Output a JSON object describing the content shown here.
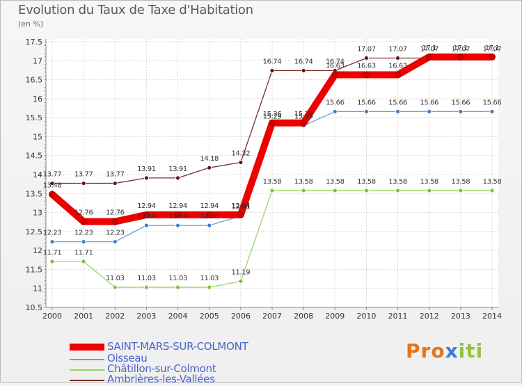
{
  "title": "Evolution du Taux de Taxe d'Habitation",
  "unit": "(en %)",
  "logo": "Proxiti",
  "chart_data": {
    "type": "line",
    "x": [
      "2000",
      "2001",
      "2002",
      "2003",
      "2004",
      "2005",
      "2006",
      "2007",
      "2008",
      "2009",
      "2010",
      "2011",
      "2012",
      "2013",
      "2014"
    ],
    "ylim": [
      10.5,
      17.5
    ],
    "yticks": [
      "10.5",
      "11",
      "11.5",
      "12",
      "12.5",
      "13",
      "13.5",
      "14",
      "14.5",
      "15",
      "15.5",
      "16",
      "16.5",
      "17",
      "17.5"
    ],
    "grid": true,
    "legend_position": "bottom",
    "series": [
      {
        "name": "Ambrières-les-Vallées",
        "color": "#7a2c2c",
        "point_color": "#5a1a1a",
        "values": [
          13.77,
          13.77,
          13.77,
          13.91,
          13.91,
          14.18,
          14.32,
          16.74,
          16.74,
          16.74,
          17.07,
          17.07,
          17.07,
          17.07,
          17.07
        ],
        "labels": [
          "13.77",
          "13.77",
          "13.77",
          "13.91",
          "13.91",
          "14.18",
          "14.32",
          "16.74",
          "16.74",
          "16.74",
          "17.07",
          "17.07",
          "17.07",
          "17.07",
          "17.07"
        ]
      },
      {
        "name": "Châtillon-sur-Colmont",
        "color": "#9ad65a",
        "point_color": "#7cc23a",
        "values": [
          11.71,
          11.71,
          11.03,
          11.03,
          11.03,
          11.03,
          11.19,
          13.58,
          13.58,
          13.58,
          13.58,
          13.58,
          13.58,
          13.58,
          13.58
        ],
        "labels": [
          "11.71",
          "11.71",
          "11.03",
          "11.03",
          "11.03",
          "11.03",
          "11.19",
          "13.58",
          "13.58",
          "13.58",
          "13.58",
          "13.58",
          "13.58",
          "13.58",
          "13.58"
        ]
      },
      {
        "name": "Oisseau",
        "color": "#6a9fd4",
        "point_color": "#3d7fc4",
        "values": [
          12.23,
          12.23,
          12.23,
          12.66,
          12.66,
          12.66,
          12.91,
          15.29,
          15.29,
          15.66,
          15.66,
          15.66,
          15.66,
          15.66,
          15.66
        ],
        "labels": [
          "12.23",
          "12.23",
          "12.23",
          "12.66",
          "12.66",
          "12.66",
          "12.91",
          "15.29",
          "15.29",
          "15.66",
          "15.66",
          "15.66",
          "15.66",
          "15.66",
          "15.66"
        ]
      },
      {
        "name": "SAINT-MARS-SUR-COLMONT",
        "color": "#ee0000",
        "point_color": "#cc0000",
        "thick": true,
        "values": [
          13.48,
          12.76,
          12.76,
          12.94,
          12.94,
          12.94,
          12.94,
          15.36,
          15.36,
          16.63,
          16.63,
          16.63,
          17.1,
          17.1,
          17.1
        ],
        "labels": [
          "13.48",
          "12.76",
          "12.76",
          "12.94",
          "12.94",
          "12.94",
          "12.94",
          "15.36",
          "15.36",
          "16.63",
          "16.63",
          "16.63",
          "17.1",
          "17.1",
          "17.1"
        ]
      }
    ]
  },
  "legend": [
    {
      "name": "SAINT-MARS-SUR-COLMONT",
      "color": "#ee0000",
      "thick": true
    },
    {
      "name": "Oisseau",
      "color": "#6a9fd4"
    },
    {
      "name": "Châtillon-sur-Colmont",
      "color": "#9ad65a"
    },
    {
      "name": "Ambrières-les-Vallées",
      "color": "#7a2c2c"
    }
  ]
}
